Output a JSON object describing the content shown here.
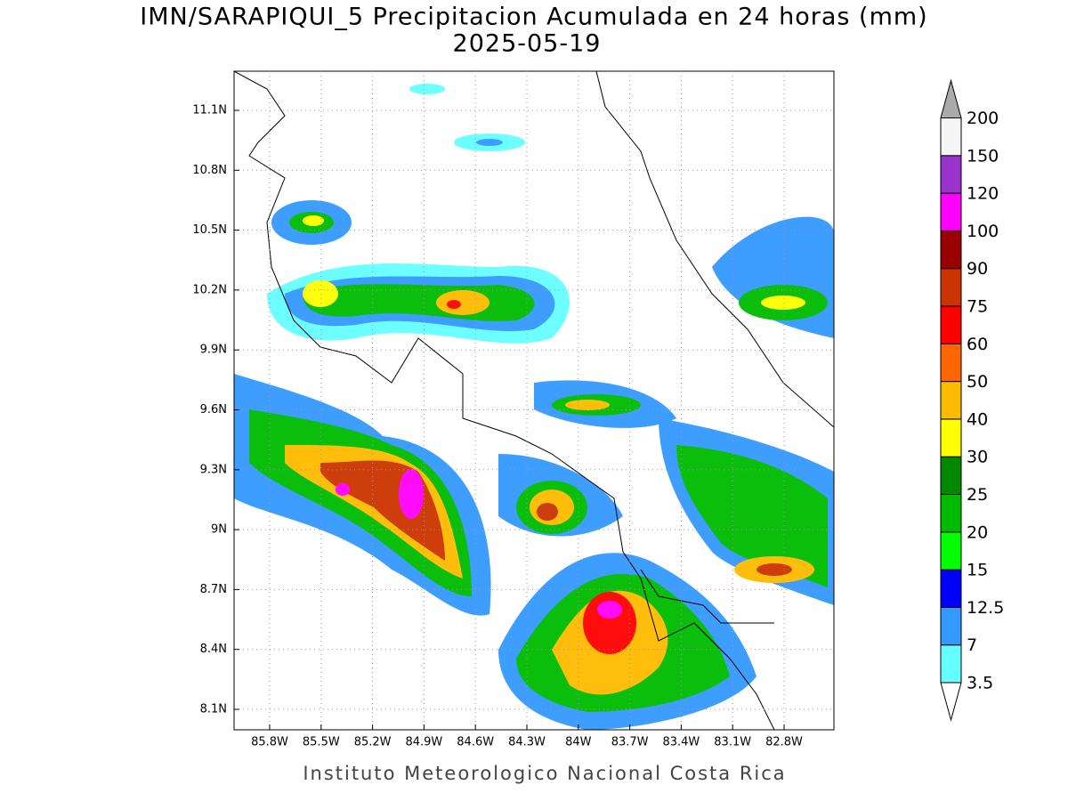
{
  "title": "IMN/SARAPIQUI_5 Precipitacion Acumulada en 24 horas (mm)",
  "subtitle": "2025-05-19",
  "map": {
    "lat_labels": [
      "11.1N",
      "10.8N",
      "10.5N",
      "10.2N",
      "9.9N",
      "9.6N",
      "9.3N",
      "9N",
      "8.7N",
      "8.4N",
      "8.1N"
    ],
    "lon_labels": [
      "85.8W",
      "85.5W",
      "85.2W",
      "84.9W",
      "84.6W",
      "84.3W",
      "84W",
      "83.7W",
      "83.4W",
      "83.1W",
      "82.8W"
    ]
  },
  "colorbar": {
    "levels": [
      3.5,
      7,
      12.5,
      15,
      20,
      25,
      30,
      40,
      50,
      60,
      75,
      90,
      100,
      120,
      150,
      200
    ],
    "colors": [
      "#66ffff",
      "#3399ff",
      "#0000ff",
      "#00ff00",
      "#00bb00",
      "#008800",
      "#ffff00",
      "#ffbb00",
      "#ff6600",
      "#ff0000",
      "#cc3300",
      "#990000",
      "#ff00ff",
      "#9933cc",
      "#f5f5f5"
    ],
    "below_color": "#ffffff",
    "above_color": "#aaaaaa"
  },
  "footer": "Instituto Meteorologico Nacional Costa Rica"
}
